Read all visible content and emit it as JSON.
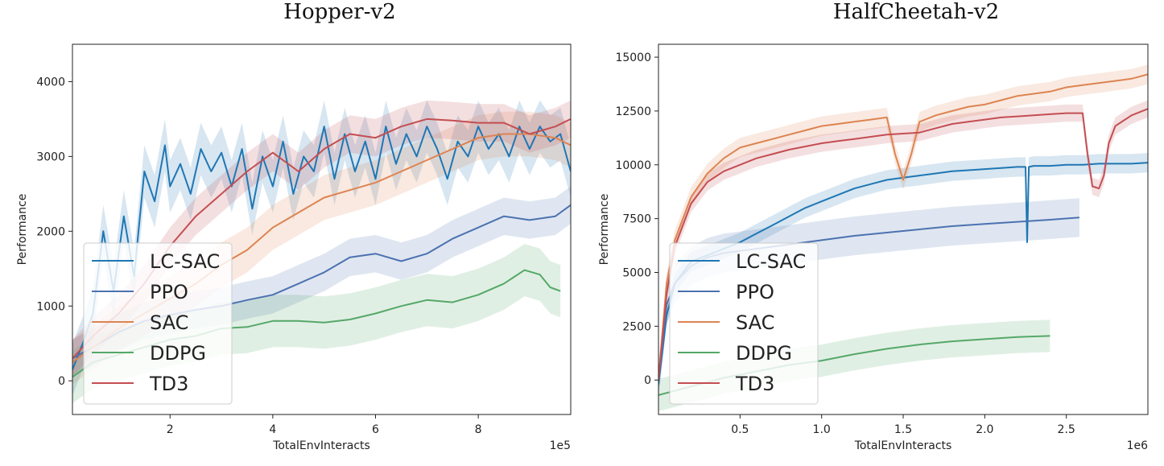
{
  "chart_data": [
    {
      "type": "line",
      "title": "Hopper-v2",
      "xlabel": "TotalEnvInteracts",
      "ylabel": "Performance",
      "x_multiplier": "1e5",
      "xlim": [
        0.1,
        9.8
      ],
      "ylim": [
        -450,
        4500
      ],
      "xticks": [
        2,
        4,
        6,
        8
      ],
      "yticks": [
        0,
        1000,
        2000,
        3000,
        4000
      ],
      "legend_position": "lower-left",
      "series": [
        {
          "name": "LC-SAC",
          "color": "#1f77b4",
          "band": 350,
          "x": [
            0.1,
            0.3,
            0.5,
            0.7,
            0.9,
            1.1,
            1.3,
            1.5,
            1.7,
            1.9,
            2.0,
            2.2,
            2.4,
            2.6,
            2.8,
            3.0,
            3.2,
            3.4,
            3.6,
            3.8,
            4.0,
            4.2,
            4.4,
            4.6,
            4.8,
            5.0,
            5.2,
            5.4,
            5.6,
            5.8,
            6.0,
            6.2,
            6.4,
            6.6,
            6.8,
            7.0,
            7.2,
            7.4,
            7.6,
            7.8,
            8.0,
            8.2,
            8.4,
            8.6,
            8.8,
            9.0,
            9.2,
            9.4,
            9.6,
            9.8
          ],
          "y": [
            150,
            500,
            900,
            2000,
            1200,
            2200,
            1400,
            2800,
            2400,
            3150,
            2600,
            2900,
            2500,
            3100,
            2800,
            3050,
            2600,
            3100,
            2300,
            3000,
            2600,
            3200,
            2500,
            3000,
            2800,
            3400,
            2700,
            3300,
            2800,
            3200,
            2700,
            3400,
            2900,
            3300,
            3000,
            3400,
            3100,
            2700,
            3200,
            3000,
            3400,
            3100,
            3300,
            3000,
            3400,
            3100,
            3400,
            3200,
            3300,
            2800
          ]
        },
        {
          "name": "PPO",
          "color": "#4c72b0",
          "band": 250,
          "x": [
            0.1,
            0.5,
            1.0,
            1.5,
            2.0,
            2.5,
            3.0,
            3.5,
            4.0,
            4.5,
            5.0,
            5.5,
            6.0,
            6.5,
            7.0,
            7.5,
            8.0,
            8.5,
            9.0,
            9.5,
            9.8
          ],
          "y": [
            300,
            450,
            650,
            800,
            880,
            950,
            1000,
            1080,
            1150,
            1300,
            1450,
            1650,
            1700,
            1600,
            1700,
            1900,
            2050,
            2200,
            2150,
            2200,
            2350
          ]
        },
        {
          "name": "SAC",
          "color": "#dd8452",
          "band": 300,
          "x": [
            0.1,
            0.5,
            1.0,
            1.5,
            2.0,
            2.5,
            3.0,
            3.5,
            4.0,
            4.5,
            5.0,
            5.5,
            6.0,
            6.5,
            7.0,
            7.5,
            8.0,
            8.5,
            9.0,
            9.5,
            9.8
          ],
          "y": [
            250,
            450,
            700,
            900,
            1100,
            1300,
            1550,
            1750,
            2050,
            2250,
            2450,
            2550,
            2650,
            2800,
            2950,
            3100,
            3250,
            3300,
            3300,
            3250,
            3150
          ]
        },
        {
          "name": "DDPG",
          "color": "#55a868",
          "band": 350,
          "x": [
            0.1,
            0.5,
            1.0,
            1.5,
            2.0,
            2.5,
            3.0,
            3.5,
            4.0,
            4.5,
            5.0,
            5.5,
            6.0,
            6.5,
            7.0,
            7.5,
            8.0,
            8.5,
            8.9,
            9.2,
            9.4,
            9.6
          ],
          "y": [
            50,
            250,
            350,
            450,
            550,
            600,
            700,
            720,
            800,
            800,
            780,
            820,
            900,
            1000,
            1080,
            1050,
            1150,
            1300,
            1480,
            1420,
            1250,
            1200
          ]
        },
        {
          "name": "TD3",
          "color": "#c44e52",
          "band": 250,
          "x": [
            0.1,
            0.5,
            1.0,
            1.5,
            2.0,
            2.5,
            3.0,
            3.5,
            4.0,
            4.5,
            5.0,
            5.5,
            6.0,
            6.5,
            7.0,
            7.5,
            8.0,
            8.5,
            9.0,
            9.5,
            9.8
          ],
          "y": [
            300,
            600,
            900,
            1300,
            1800,
            2200,
            2500,
            2800,
            3050,
            2800,
            3100,
            3300,
            3250,
            3400,
            3500,
            3480,
            3450,
            3450,
            3300,
            3400,
            3500
          ]
        }
      ]
    },
    {
      "type": "line",
      "title": "HalfCheetah-v2",
      "xlabel": "TotalEnvInteracts",
      "ylabel": "Performance",
      "x_multiplier": "1e6",
      "xlim": [
        0,
        3.0
      ],
      "ylim": [
        -1600,
        15600
      ],
      "xticks": [
        0.5,
        1.0,
        1.5,
        2.0,
        2.5
      ],
      "xtick_labels": [
        "0.5",
        "1.0",
        "1.5",
        "2.0",
        "2.5"
      ],
      "yticks": [
        0,
        2500,
        5000,
        7500,
        10000,
        12500,
        15000
      ],
      "legend_position": "lower-left",
      "series": [
        {
          "name": "LC-SAC",
          "color": "#1f77b4",
          "band": 450,
          "x": [
            0,
            0.05,
            0.1,
            0.2,
            0.3,
            0.4,
            0.5,
            0.6,
            0.7,
            0.8,
            0.9,
            1.0,
            1.1,
            1.2,
            1.3,
            1.4,
            1.5,
            1.6,
            1.7,
            1.8,
            1.9,
            2.0,
            2.1,
            2.2,
            2.25,
            2.26,
            2.27,
            2.3,
            2.4,
            2.5,
            2.6,
            2.7,
            2.8,
            2.9,
            3.0
          ],
          "y": [
            -200,
            3000,
            4500,
            5500,
            5800,
            6100,
            6400,
            6800,
            7200,
            7600,
            8000,
            8300,
            8600,
            8900,
            9100,
            9300,
            9400,
            9500,
            9600,
            9700,
            9750,
            9800,
            9850,
            9900,
            9900,
            6400,
            9900,
            9950,
            9950,
            10000,
            10000,
            10050,
            10050,
            10050,
            10100
          ]
        },
        {
          "name": "PPO",
          "color": "#4c72b0",
          "band": 900,
          "x": [
            0,
            0.05,
            0.1,
            0.2,
            0.3,
            0.4,
            0.6,
            0.8,
            1.0,
            1.2,
            1.4,
            1.6,
            1.8,
            2.0,
            2.2,
            2.4,
            2.58
          ],
          "y": [
            0,
            3500,
            4500,
            5300,
            5700,
            5900,
            6100,
            6300,
            6500,
            6700,
            6850,
            7000,
            7150,
            7250,
            7350,
            7450,
            7550
          ]
        },
        {
          "name": "SAC",
          "color": "#dd8452",
          "band": 450,
          "x": [
            0,
            0.05,
            0.1,
            0.2,
            0.3,
            0.4,
            0.5,
            0.6,
            0.7,
            0.8,
            0.9,
            1.0,
            1.1,
            1.2,
            1.3,
            1.4,
            1.45,
            1.5,
            1.55,
            1.6,
            1.7,
            1.8,
            1.9,
            2.0,
            2.1,
            2.2,
            2.3,
            2.4,
            2.5,
            2.6,
            2.7,
            2.8,
            2.9,
            3.0
          ],
          "y": [
            0,
            4500,
            6500,
            8500,
            9600,
            10300,
            10800,
            11000,
            11200,
            11400,
            11600,
            11800,
            11900,
            12000,
            12100,
            12200,
            10500,
            9300,
            10500,
            12000,
            12300,
            12500,
            12700,
            12800,
            13000,
            13200,
            13300,
            13400,
            13600,
            13700,
            13800,
            13900,
            14000,
            14200
          ]
        },
        {
          "name": "DDPG",
          "color": "#55a868",
          "band": 750,
          "x": [
            0,
            0.2,
            0.4,
            0.6,
            0.8,
            1.0,
            1.2,
            1.4,
            1.6,
            1.8,
            2.0,
            2.2,
            2.4
          ],
          "y": [
            -700,
            -300,
            100,
            400,
            700,
            900,
            1200,
            1450,
            1650,
            1800,
            1900,
            2000,
            2050
          ]
        },
        {
          "name": "TD3",
          "color": "#c44e52",
          "band": 400,
          "x": [
            0,
            0.05,
            0.1,
            0.2,
            0.3,
            0.4,
            0.5,
            0.6,
            0.7,
            0.8,
            0.9,
            1.0,
            1.1,
            1.2,
            1.3,
            1.4,
            1.5,
            1.6,
            1.7,
            1.8,
            1.9,
            2.0,
            2.1,
            2.2,
            2.3,
            2.4,
            2.5,
            2.6,
            2.63,
            2.66,
            2.7,
            2.73,
            2.76,
            2.8,
            2.9,
            3.0
          ],
          "y": [
            0,
            4000,
            6200,
            8200,
            9200,
            9700,
            10000,
            10300,
            10500,
            10700,
            10850,
            11000,
            11100,
            11200,
            11300,
            11400,
            11450,
            11500,
            11700,
            11900,
            12000,
            12100,
            12200,
            12250,
            12300,
            12350,
            12400,
            12400,
            10500,
            9000,
            8900,
            9500,
            11000,
            11800,
            12300,
            12600
          ]
        }
      ]
    }
  ]
}
